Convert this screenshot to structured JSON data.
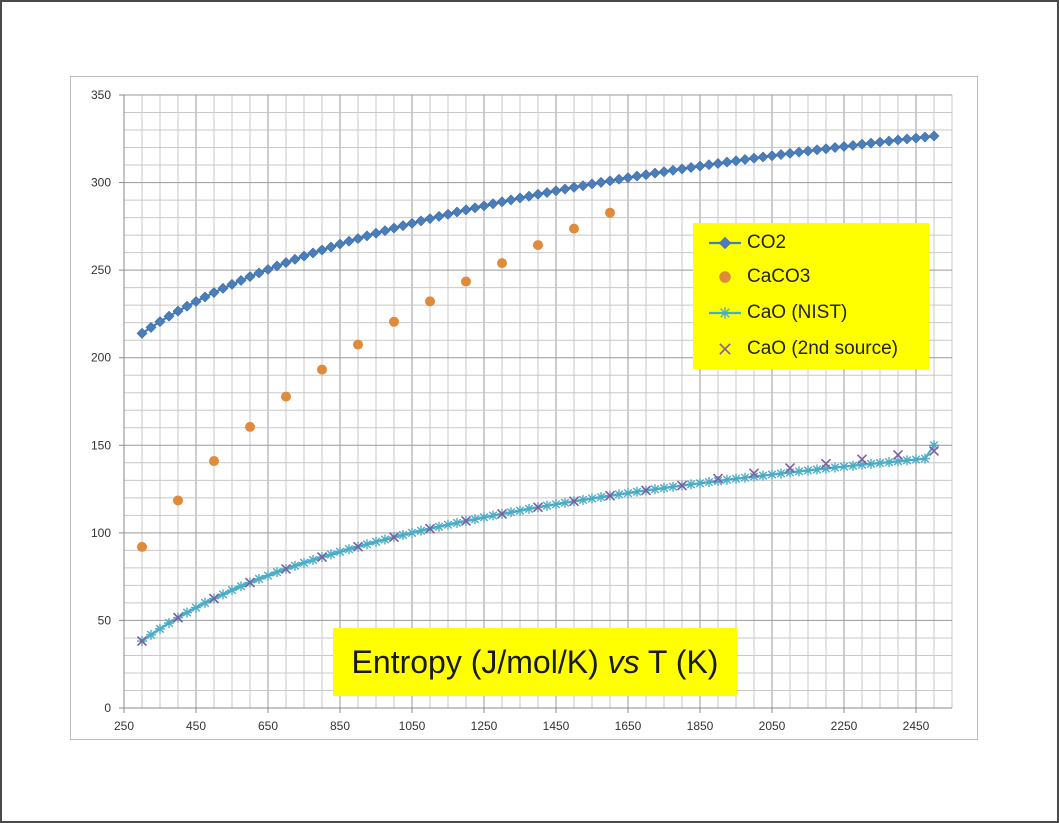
{
  "chart_data": {
    "type": "scatter",
    "title_parts": [
      "Entropy (J/mol/K) ",
      "vs",
      " T (K)"
    ],
    "xlabel": "",
    "ylabel": "",
    "xlim": [
      250,
      2550
    ],
    "ylim": [
      0,
      350
    ],
    "x_ticks": [
      "250",
      "450",
      "650",
      "850",
      "1050",
      "1250",
      "1450",
      "1650",
      "1850",
      "2050",
      "2250",
      "2450"
    ],
    "y_ticks": [
      "0",
      "50",
      "100",
      "150",
      "200",
      "250",
      "300",
      "350"
    ],
    "x_minor_step": 50,
    "y_minor_step": 10,
    "grid": true,
    "legend_position": "right",
    "series": [
      {
        "name": "CO2",
        "color": "#4a7ebb",
        "marker": "diamond",
        "line": true,
        "x": [
          300,
          325,
          350,
          375,
          400,
          425,
          450,
          475,
          500,
          525,
          550,
          575,
          600,
          625,
          650,
          675,
          700,
          725,
          750,
          775,
          800,
          825,
          850,
          875,
          900,
          925,
          950,
          975,
          1000,
          1025,
          1050,
          1075,
          1100,
          1125,
          1150,
          1175,
          1200,
          1225,
          1250,
          1275,
          1300,
          1325,
          1350,
          1375,
          1400,
          1425,
          1450,
          1475,
          1500,
          1525,
          1550,
          1575,
          1600,
          1625,
          1650,
          1675,
          1700,
          1725,
          1750,
          1775,
          1800,
          1825,
          1850,
          1875,
          1900,
          1925,
          1950,
          1975,
          2000,
          2025,
          2050,
          2075,
          2100,
          2125,
          2150,
          2175,
          2200,
          2225,
          2250,
          2275,
          2300,
          2325,
          2350,
          2375,
          2400,
          2425,
          2450,
          2475,
          2500
        ],
        "y": [
          213.9,
          217.3,
          220.6,
          223.7,
          226.6,
          229.4,
          232.1,
          234.7,
          237.2,
          239.6,
          241.9,
          244.1,
          246.3,
          248.4,
          250.4,
          252.4,
          254.3,
          256.2,
          258.0,
          259.8,
          261.5,
          263.2,
          264.9,
          266.5,
          268.0,
          269.6,
          271.1,
          272.5,
          274.0,
          275.4,
          276.7,
          278.1,
          279.4,
          280.7,
          281.9,
          283.2,
          284.4,
          285.6,
          286.7,
          287.9,
          289.0,
          290.1,
          291.2,
          292.2,
          293.3,
          294.3,
          295.3,
          296.3,
          297.3,
          298.2,
          299.2,
          300.1,
          301.0,
          301.9,
          302.8,
          303.7,
          304.5,
          305.4,
          306.2,
          307.0,
          307.8,
          308.6,
          309.4,
          310.2,
          310.9,
          311.7,
          312.4,
          313.2,
          313.9,
          314.6,
          315.3,
          316.0,
          316.7,
          317.4,
          318.0,
          318.7,
          319.3,
          320.0,
          320.6,
          321.2,
          321.9,
          322.5,
          323.1,
          323.7,
          324.3,
          324.9,
          325.4,
          326.0,
          326.6
        ]
      },
      {
        "name": "CaCO3",
        "color": "#e08a3c",
        "marker": "circle",
        "line": false,
        "x": [
          300,
          400,
          500,
          600,
          700,
          800,
          900,
          1000,
          1100,
          1200,
          1300,
          1400,
          1500,
          1600
        ],
        "y": [
          92.0,
          118.5,
          141.0,
          160.5,
          177.8,
          193.2,
          207.5,
          220.5,
          232.2,
          243.5,
          254.0,
          264.3,
          273.7,
          282.8
        ]
      },
      {
        "name": "CaO (NIST)",
        "color": "#4bacc6",
        "marker": "star",
        "line": true,
        "x": [
          300,
          325,
          350,
          375,
          400,
          425,
          450,
          475,
          500,
          525,
          550,
          575,
          600,
          625,
          650,
          675,
          700,
          725,
          750,
          775,
          800,
          825,
          850,
          875,
          900,
          925,
          950,
          975,
          1000,
          1025,
          1050,
          1075,
          1100,
          1125,
          1150,
          1175,
          1200,
          1225,
          1250,
          1275,
          1300,
          1325,
          1350,
          1375,
          1400,
          1425,
          1450,
          1475,
          1500,
          1525,
          1550,
          1575,
          1600,
          1625,
          1650,
          1675,
          1700,
          1725,
          1750,
          1775,
          1800,
          1825,
          1850,
          1875,
          1900,
          1925,
          1950,
          1975,
          2000,
          2025,
          2050,
          2075,
          2100,
          2125,
          2150,
          2175,
          2200,
          2225,
          2250,
          2275,
          2300,
          2325,
          2350,
          2375,
          2400,
          2425,
          2450,
          2475,
          2500
        ],
        "y": [
          38.2,
          41.8,
          45.2,
          48.5,
          51.6,
          54.5,
          57.3,
          60.0,
          62.5,
          64.9,
          67.3,
          69.5,
          71.6,
          73.7,
          75.6,
          77.6,
          79.4,
          81.2,
          82.9,
          84.5,
          86.2,
          87.7,
          89.2,
          90.7,
          92.1,
          93.5,
          94.9,
          96.2,
          97.5,
          98.8,
          100.0,
          101.2,
          102.4,
          103.5,
          104.6,
          105.7,
          106.8,
          107.8,
          108.9,
          109.9,
          110.8,
          111.8,
          112.7,
          113.7,
          114.6,
          115.5,
          116.3,
          117.2,
          118.0,
          118.8,
          119.6,
          120.4,
          121.2,
          122.0,
          122.7,
          123.5,
          124.2,
          124.9,
          125.6,
          126.3,
          127.0,
          127.7,
          128.3,
          129.0,
          129.6,
          130.3,
          130.9,
          131.5,
          132.1,
          132.7,
          133.3,
          133.9,
          134.5,
          135.1,
          135.6,
          136.2,
          136.7,
          137.3,
          137.8,
          138.3,
          138.9,
          139.4,
          139.9,
          140.4,
          140.9,
          141.4,
          141.9,
          142.4,
          150.0
        ]
      },
      {
        "name": "CaO (2nd source)",
        "color": "#7f5fa0",
        "marker": "x",
        "line": false,
        "x": [
          300,
          400,
          500,
          600,
          700,
          800,
          900,
          1000,
          1100,
          1200,
          1300,
          1400,
          1500,
          1600,
          1700,
          1800,
          1900,
          2000,
          2100,
          2200,
          2300,
          2400,
          2500
        ],
        "y": [
          38.2,
          51.6,
          62.5,
          71.6,
          79.4,
          86.2,
          92.1,
          97.5,
          102.4,
          106.8,
          110.8,
          114.6,
          118.0,
          121.2,
          124.2,
          127.0,
          131.0,
          134.0,
          137.0,
          139.5,
          142.0,
          144.5,
          146.8
        ]
      }
    ]
  }
}
